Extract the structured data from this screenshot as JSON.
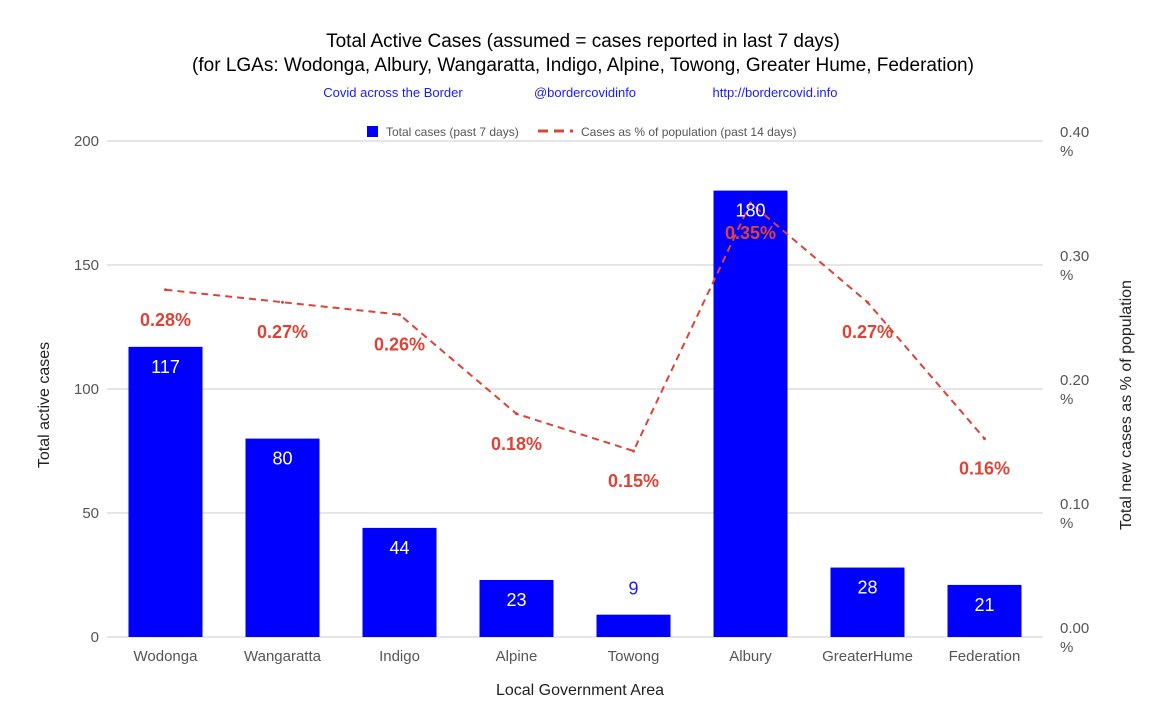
{
  "chart_data": {
    "type": "bar",
    "title": "Total Active Cases (assumed = cases reported in last 7 days)",
    "subtitle": "(for LGAs: Wodonga, Albury, Wangaratta, Indigo, Alpine, Towong, Greater Hume, Federation)",
    "credits": [
      "Covid across the Border",
      "@bordercovidinfo",
      "http://bordercovid.info"
    ],
    "categories": [
      "Wodonga",
      "Wangaratta",
      "Indigo",
      "Alpine",
      "Towong",
      "Albury",
      "GreaterHume",
      "Federation"
    ],
    "series": [
      {
        "name": "Total cases (past 7 days)",
        "type": "bar",
        "axis": "left",
        "color": "#0000ff",
        "values": [
          117,
          80,
          44,
          23,
          9,
          180,
          28,
          21
        ]
      },
      {
        "name": "Cases as % of population (past 14 days)",
        "type": "line",
        "style": "dashed",
        "axis": "right",
        "color": "#db4437",
        "values": [
          0.28,
          0.27,
          0.26,
          0.18,
          0.15,
          0.35,
          0.27,
          0.16
        ],
        "labels": [
          "0.28%",
          "0.27%",
          "0.26%",
          "0.18%",
          "0.15%",
          "0.35%",
          "0.27%",
          "0.16%"
        ]
      }
    ],
    "xlabel": "Local Government Area",
    "ylabel": "Total active cases",
    "y2label": "Total new cases as % of population",
    "ylim": [
      0,
      200
    ],
    "yticks": [
      "0",
      "50",
      "100",
      "150",
      "200"
    ],
    "y2lim": [
      0,
      0.4
    ],
    "y2ticks": [
      "0.00",
      "0.10",
      "0.20",
      "0.30",
      "0.40"
    ],
    "y2tick_unit": "%",
    "grid": true,
    "legend": "top"
  }
}
